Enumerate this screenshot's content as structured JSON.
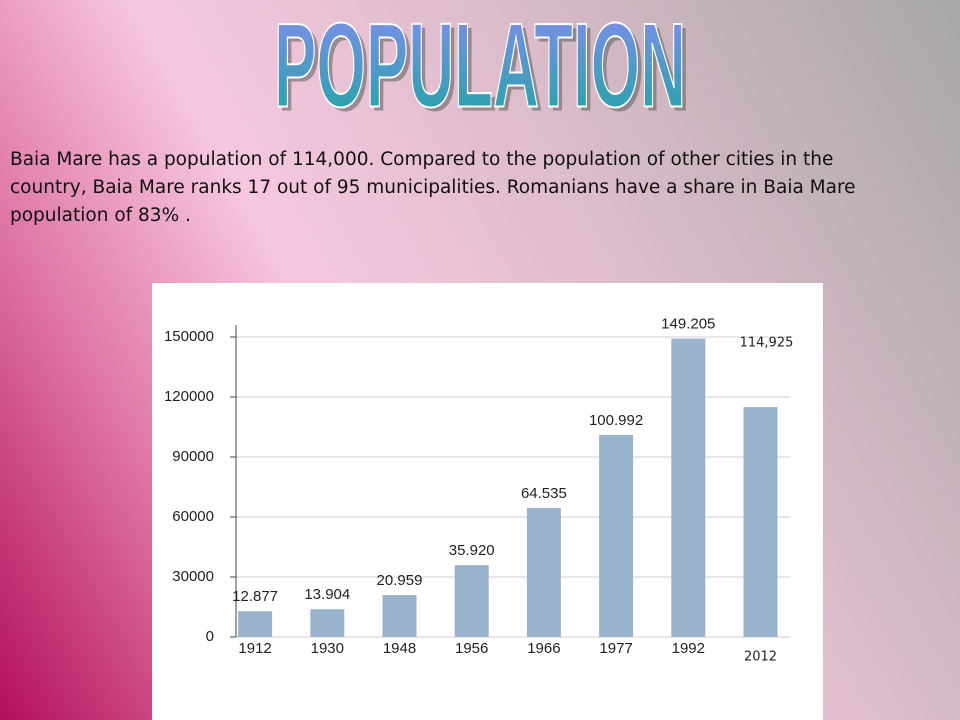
{
  "title": "POPULATION",
  "text": "Baia Mare has a population of 114,000. Compared to the population of other cities in the country, Baia Mare ranks 17 out of 95 municipalities. Romanians have a share in Baia Mare population of 83% .",
  "chart_data": {
    "type": "bar",
    "categories": [
      "1912",
      "1930",
      "1948",
      "1956",
      "1966",
      "1977",
      "1992",
      "2012"
    ],
    "values": [
      12877,
      13904,
      20959,
      35920,
      64535,
      100992,
      149205,
      114925
    ],
    "value_labels": [
      "12.877",
      "13.904",
      "20.959",
      "35.920",
      "64.535",
      "100.992",
      "149.205",
      "114,925"
    ],
    "color": "#9ab3cc",
    "ylim": [
      0,
      156000
    ],
    "yticks": [
      0,
      30000,
      60000,
      90000,
      120000,
      150000
    ],
    "grid": true
  }
}
